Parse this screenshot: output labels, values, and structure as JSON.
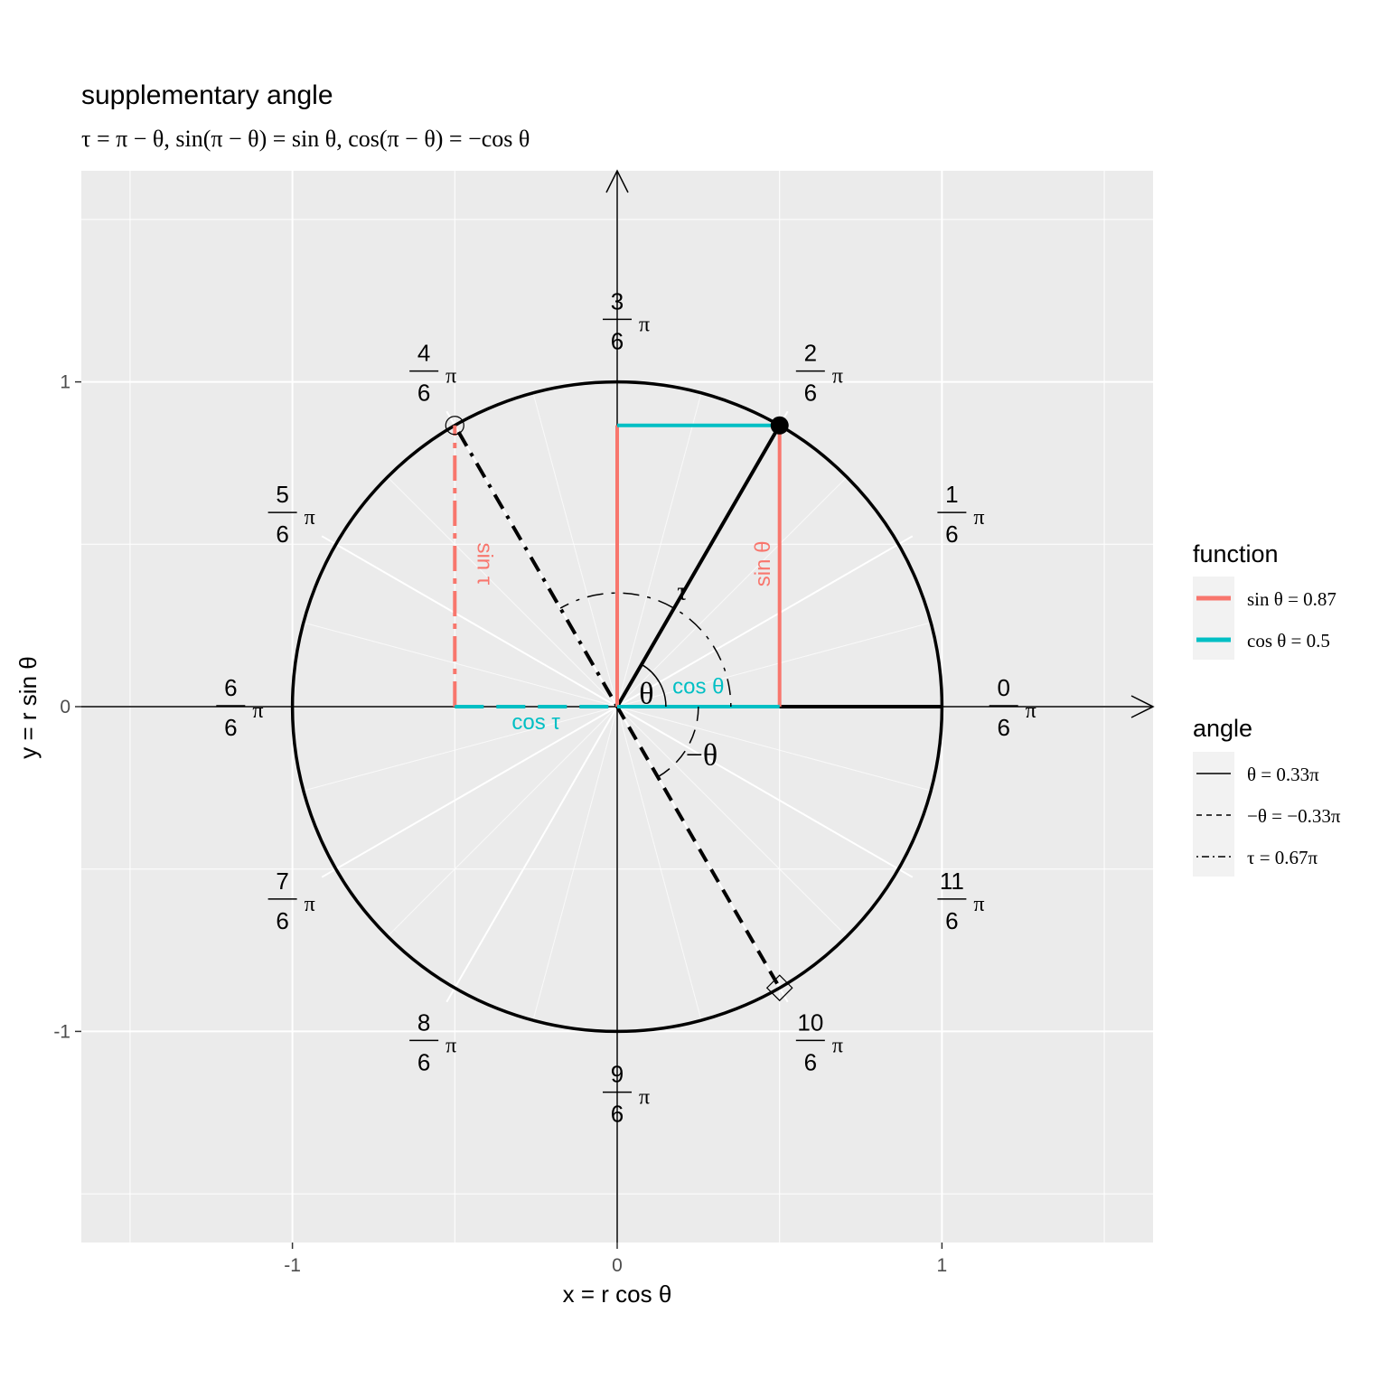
{
  "chart_data": {
    "type": "line",
    "title": "supplementary angle",
    "subtitle": "τ = π − θ, sin(π − θ) = sin θ, cos(π − θ) = −cos θ",
    "xlabel": "x = r cos θ",
    "ylabel": "y = r sin θ",
    "xlim": [
      -1.65,
      1.65
    ],
    "ylim": [
      -1.65,
      1.65
    ],
    "x_ticks": [
      {
        "value": -1,
        "label": "-1"
      },
      {
        "value": 0,
        "label": "0"
      },
      {
        "value": 1,
        "label": "1"
      }
    ],
    "y_ticks": [
      {
        "value": -1,
        "label": "-1"
      },
      {
        "value": 0,
        "label": "0"
      },
      {
        "value": 1,
        "label": "1"
      }
    ],
    "grid": true,
    "legend_position": "right",
    "unit_circle_radius": 1,
    "angle_ticks": [
      {
        "num": "0",
        "den": "6"
      },
      {
        "num": "1",
        "den": "6"
      },
      {
        "num": "2",
        "den": "6"
      },
      {
        "num": "3",
        "den": "6"
      },
      {
        "num": "4",
        "den": "6"
      },
      {
        "num": "5",
        "den": "6"
      },
      {
        "num": "6",
        "den": "6"
      },
      {
        "num": "7",
        "den": "6"
      },
      {
        "num": "8",
        "den": "6"
      },
      {
        "num": "9",
        "den": "6"
      },
      {
        "num": "10",
        "den": "6"
      },
      {
        "num": "11",
        "den": "6"
      }
    ],
    "pi_symbol": "π",
    "angles": [
      {
        "name": "θ",
        "value_pi": 0.3333,
        "linetype": "solid"
      },
      {
        "name": "−θ",
        "value_pi": -0.3333,
        "linetype": "dashed"
      },
      {
        "name": "τ",
        "value_pi": 0.6667,
        "linetype": "dotdash"
      }
    ],
    "series": [
      {
        "name": "sin",
        "color": "#F8766D",
        "segments": [
          {
            "x": [
              0,
              0
            ],
            "y": [
              0,
              0.866
            ]
          },
          {
            "x": [
              0.5,
              0.5
            ],
            "y": [
              0,
              0.866
            ]
          },
          {
            "x": [
              -0.5,
              -0.5
            ],
            "y": [
              0,
              0.866
            ]
          }
        ]
      },
      {
        "name": "cos",
        "color": "#00BFC4",
        "segments": [
          {
            "x": [
              0,
              0.5
            ],
            "y": [
              0,
              0
            ]
          },
          {
            "x": [
              0,
              0.5
            ],
            "y": [
              0.866,
              0.866
            ]
          },
          {
            "x": [
              -0.5,
              0
            ],
            "y": [
              0,
              0
            ]
          }
        ]
      }
    ],
    "annotations": {
      "sin_theta": "sin θ",
      "cos_theta": "cos θ",
      "sin_tau": "sin τ",
      "cos_tau": "cos τ",
      "theta": "θ",
      "neg_theta": "−θ",
      "tau": "τ"
    },
    "legend": {
      "function_title": "function",
      "function_items": [
        {
          "label": "sin θ = 0.87",
          "color": "#F8766D"
        },
        {
          "label": "cos θ = 0.5",
          "color": "#00BFC4"
        }
      ],
      "angle_title": "angle",
      "angle_items": [
        {
          "label": "θ = 0.33π",
          "linetype": "solid"
        },
        {
          "label": "−θ = −0.33π",
          "linetype": "dashed"
        },
        {
          "label": "τ = 0.67π",
          "linetype": "dotdash"
        }
      ]
    }
  }
}
